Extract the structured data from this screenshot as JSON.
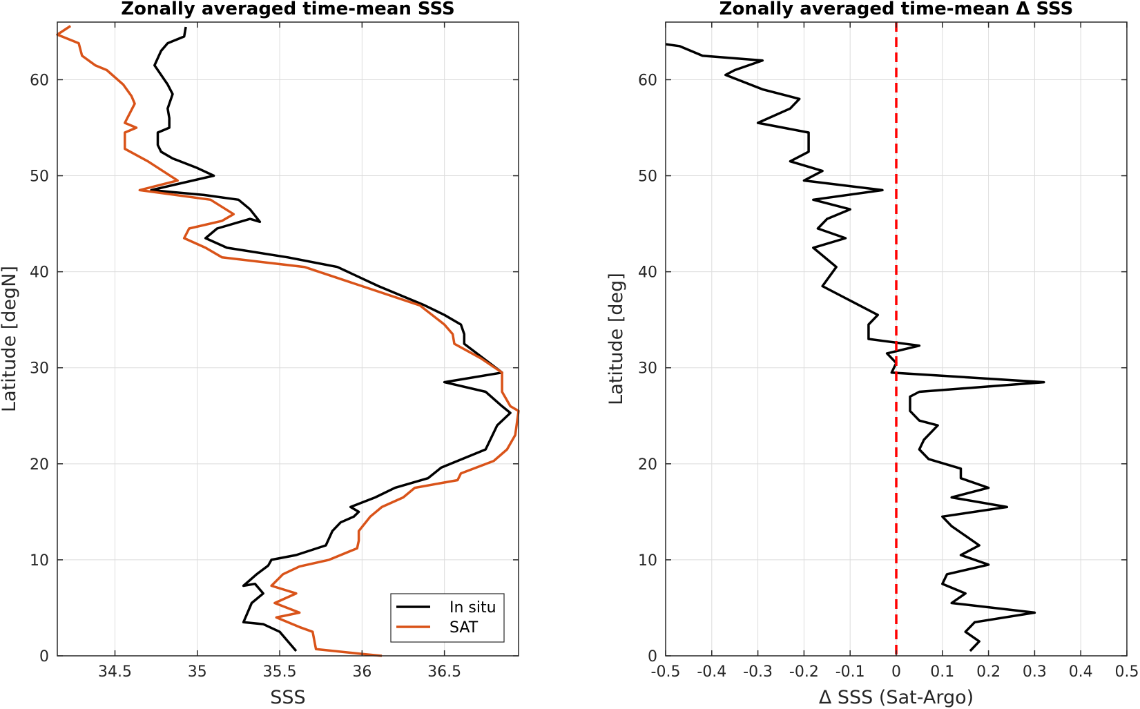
{
  "chart_data": [
    {
      "type": "line",
      "title": "Zonally averaged time-mean SSS",
      "xlabel": "SSS",
      "ylabel": "Latitude [degN]",
      "xlim": [
        34.15,
        36.95
      ],
      "ylim": [
        0,
        66
      ],
      "xticks": [
        34.5,
        35,
        35.5,
        36,
        36.5
      ],
      "xtick_labels": [
        "34.5",
        "35",
        "35.5",
        "36",
        "36.5"
      ],
      "yticks": [
        0,
        10,
        20,
        30,
        40,
        50,
        60
      ],
      "ytick_labels": [
        "0",
        "10",
        "20",
        "30",
        "40",
        "50",
        "60"
      ],
      "grid": true,
      "legend_position": "bottom-right",
      "series": [
        {
          "name": "In situ",
          "color": "#000000",
          "points": [
            [
              35.6,
              0.5
            ],
            [
              35.55,
              1.5
            ],
            [
              35.5,
              2.5
            ],
            [
              35.4,
              3.3
            ],
            [
              35.28,
              3.5
            ],
            [
              35.33,
              5.5
            ],
            [
              35.4,
              6.5
            ],
            [
              35.35,
              7.5
            ],
            [
              35.28,
              7.3
            ],
            [
              35.36,
              8.5
            ],
            [
              35.43,
              9.4
            ],
            [
              35.45,
              10
            ],
            [
              35.6,
              10.5
            ],
            [
              35.78,
              11.5
            ],
            [
              35.82,
              13
            ],
            [
              35.87,
              13.9
            ],
            [
              35.95,
              14.5
            ],
            [
              35.98,
              15
            ],
            [
              35.93,
              15.5
            ],
            [
              36.08,
              16.5
            ],
            [
              36.2,
              17.5
            ],
            [
              36.4,
              18.5
            ],
            [
              36.48,
              19.6
            ],
            [
              36.75,
              21.5
            ],
            [
              36.82,
              24
            ],
            [
              36.9,
              25.3
            ],
            [
              36.85,
              26
            ],
            [
              36.75,
              27.5
            ],
            [
              36.5,
              28.5
            ],
            [
              36.85,
              29.5
            ],
            [
              36.62,
              32.5
            ],
            [
              36.62,
              33.5
            ],
            [
              36.6,
              34.5
            ],
            [
              36.5,
              35.5
            ],
            [
              36.38,
              36.5
            ],
            [
              36.1,
              38.5
            ],
            [
              35.85,
              40.5
            ],
            [
              35.55,
              41.5
            ],
            [
              35.18,
              42.5
            ],
            [
              35.05,
              43.5
            ],
            [
              35.12,
              44.5
            ],
            [
              35.32,
              45.5
            ],
            [
              35.38,
              45.2
            ],
            [
              35.32,
              46.5
            ],
            [
              35.25,
              47.5
            ],
            [
              35.04,
              48
            ],
            [
              34.72,
              48.5
            ],
            [
              35.1,
              50
            ],
            [
              35.0,
              50.8
            ],
            [
              34.85,
              51.8
            ],
            [
              34.78,
              52.5
            ],
            [
              34.76,
              53.2
            ],
            [
              34.76,
              54.5
            ],
            [
              34.83,
              55
            ],
            [
              34.83,
              56
            ],
            [
              34.82,
              57
            ],
            [
              34.85,
              58.5
            ],
            [
              34.82,
              59.5
            ],
            [
              34.74,
              61.5
            ],
            [
              34.78,
              63
            ],
            [
              34.82,
              63.8
            ],
            [
              34.92,
              64.5
            ],
            [
              34.93,
              65.5
            ]
          ]
        },
        {
          "name": "SAT",
          "color": "#D95319",
          "points": [
            [
              36.12,
              0
            ],
            [
              36.0,
              0.2
            ],
            [
              35.72,
              0.7
            ],
            [
              35.7,
              2.5
            ],
            [
              35.62,
              3
            ],
            [
              35.48,
              4
            ],
            [
              35.62,
              4.5
            ],
            [
              35.47,
              5.5
            ],
            [
              35.6,
              6.5
            ],
            [
              35.45,
              7.3
            ],
            [
              35.52,
              8.5
            ],
            [
              35.62,
              9.3
            ],
            [
              35.8,
              10
            ],
            [
              35.97,
              11.2
            ],
            [
              35.98,
              12
            ],
            [
              35.98,
              13
            ],
            [
              36.05,
              14.5
            ],
            [
              36.12,
              15.5
            ],
            [
              36.25,
              16.5
            ],
            [
              36.32,
              17.5
            ],
            [
              36.58,
              18.3
            ],
            [
              36.6,
              19
            ],
            [
              36.8,
              20.3
            ],
            [
              36.88,
              21.5
            ],
            [
              36.93,
              23
            ],
            [
              36.95,
              25.5
            ],
            [
              36.9,
              26
            ],
            [
              36.85,
              27.5
            ],
            [
              36.85,
              29.5
            ],
            [
              36.72,
              31
            ],
            [
              36.56,
              32.5
            ],
            [
              36.55,
              33.5
            ],
            [
              36.5,
              34.5
            ],
            [
              36.35,
              36.5
            ],
            [
              36.0,
              38.5
            ],
            [
              35.65,
              40.5
            ],
            [
              35.15,
              41.5
            ],
            [
              35.05,
              42.5
            ],
            [
              34.92,
              43.5
            ],
            [
              34.95,
              44.5
            ],
            [
              35.15,
              45.3
            ],
            [
              35.22,
              46
            ],
            [
              35.08,
              47.5
            ],
            [
              34.65,
              48.5
            ],
            [
              34.88,
              49.5
            ],
            [
              34.7,
              51.5
            ],
            [
              34.56,
              52.8
            ],
            [
              34.56,
              54.5
            ],
            [
              34.63,
              55
            ],
            [
              34.56,
              55.5
            ],
            [
              34.62,
              57.5
            ],
            [
              34.6,
              58.3
            ],
            [
              34.55,
              59.5
            ],
            [
              34.45,
              61
            ],
            [
              34.38,
              61.5
            ],
            [
              34.3,
              62.5
            ],
            [
              34.28,
              63.8
            ],
            [
              34.15,
              64.7
            ],
            [
              34.23,
              65.6
            ]
          ]
        }
      ]
    },
    {
      "type": "line",
      "title": "Zonally averaged time-mean Δ SSS",
      "xlabel": "Δ SSS (Sat-Argo)",
      "ylabel": "Latitude [deg]",
      "xlim": [
        -0.5,
        0.5
      ],
      "ylim": [
        0,
        66
      ],
      "xticks": [
        -0.5,
        -0.4,
        -0.3,
        -0.2,
        -0.1,
        0,
        0.1,
        0.2,
        0.3,
        0.4,
        0.5
      ],
      "xtick_labels": [
        "-0.5",
        "-0.4",
        "-0.3",
        "-0.2",
        "-0.1",
        "0",
        "0.1",
        "0.2",
        "0.3",
        "0.4",
        "0.5"
      ],
      "yticks": [
        0,
        10,
        20,
        30,
        40,
        50,
        60
      ],
      "ytick_labels": [
        "0",
        "10",
        "20",
        "30",
        "40",
        "50",
        "60"
      ],
      "grid": true,
      "reference_line": {
        "x": 0,
        "color": "#FF0000",
        "style": "dashed"
      },
      "series": [
        {
          "color": "#000000",
          "points": [
            [
              0.16,
              0.5
            ],
            [
              0.18,
              1.5
            ],
            [
              0.15,
              2.5
            ],
            [
              0.17,
              3.5
            ],
            [
              0.3,
              4.5
            ],
            [
              0.12,
              5.5
            ],
            [
              0.15,
              6.5
            ],
            [
              0.1,
              7.5
            ],
            [
              0.11,
              8.5
            ],
            [
              0.2,
              9.5
            ],
            [
              0.14,
              10.5
            ],
            [
              0.18,
              11.5
            ],
            [
              0.15,
              12.5
            ],
            [
              0.12,
              13.5
            ],
            [
              0.1,
              14.5
            ],
            [
              0.24,
              15.5
            ],
            [
              0.12,
              16.5
            ],
            [
              0.2,
              17.5
            ],
            [
              0.14,
              18.5
            ],
            [
              0.14,
              19.5
            ],
            [
              0.07,
              20.5
            ],
            [
              0.05,
              21.5
            ],
            [
              0.06,
              22.5
            ],
            [
              0.09,
              24
            ],
            [
              0.05,
              24.5
            ],
            [
              0.03,
              25.5
            ],
            [
              0.03,
              27
            ],
            [
              0.05,
              27.5
            ],
            [
              0.32,
              28.5
            ],
            [
              -0.01,
              29.5
            ],
            [
              0.0,
              30.5
            ],
            [
              -0.02,
              31.5
            ],
            [
              0.05,
              32.3
            ],
            [
              -0.06,
              33
            ],
            [
              -0.06,
              34.5
            ],
            [
              -0.04,
              35.5
            ],
            [
              -0.08,
              36.5
            ],
            [
              -0.16,
              38.5
            ],
            [
              -0.13,
              40.5
            ],
            [
              -0.18,
              42.5
            ],
            [
              -0.11,
              43.5
            ],
            [
              -0.17,
              44.5
            ],
            [
              -0.15,
              45.5
            ],
            [
              -0.1,
              46.5
            ],
            [
              -0.18,
              47.5
            ],
            [
              -0.03,
              48.5
            ],
            [
              -0.2,
              49.5
            ],
            [
              -0.16,
              50.5
            ],
            [
              -0.23,
              51.5
            ],
            [
              -0.19,
              52.5
            ],
            [
              -0.19,
              54.5
            ],
            [
              -0.3,
              55.5
            ],
            [
              -0.23,
              57
            ],
            [
              -0.21,
              58
            ],
            [
              -0.29,
              59
            ],
            [
              -0.37,
              60.5
            ],
            [
              -0.35,
              61
            ],
            [
              -0.29,
              62
            ],
            [
              -0.42,
              62.5
            ],
            [
              -0.47,
              63.5
            ],
            [
              -0.5,
              63.7
            ]
          ]
        }
      ]
    }
  ],
  "legend": {
    "in_situ_label": "In situ",
    "sat_label": "SAT"
  }
}
